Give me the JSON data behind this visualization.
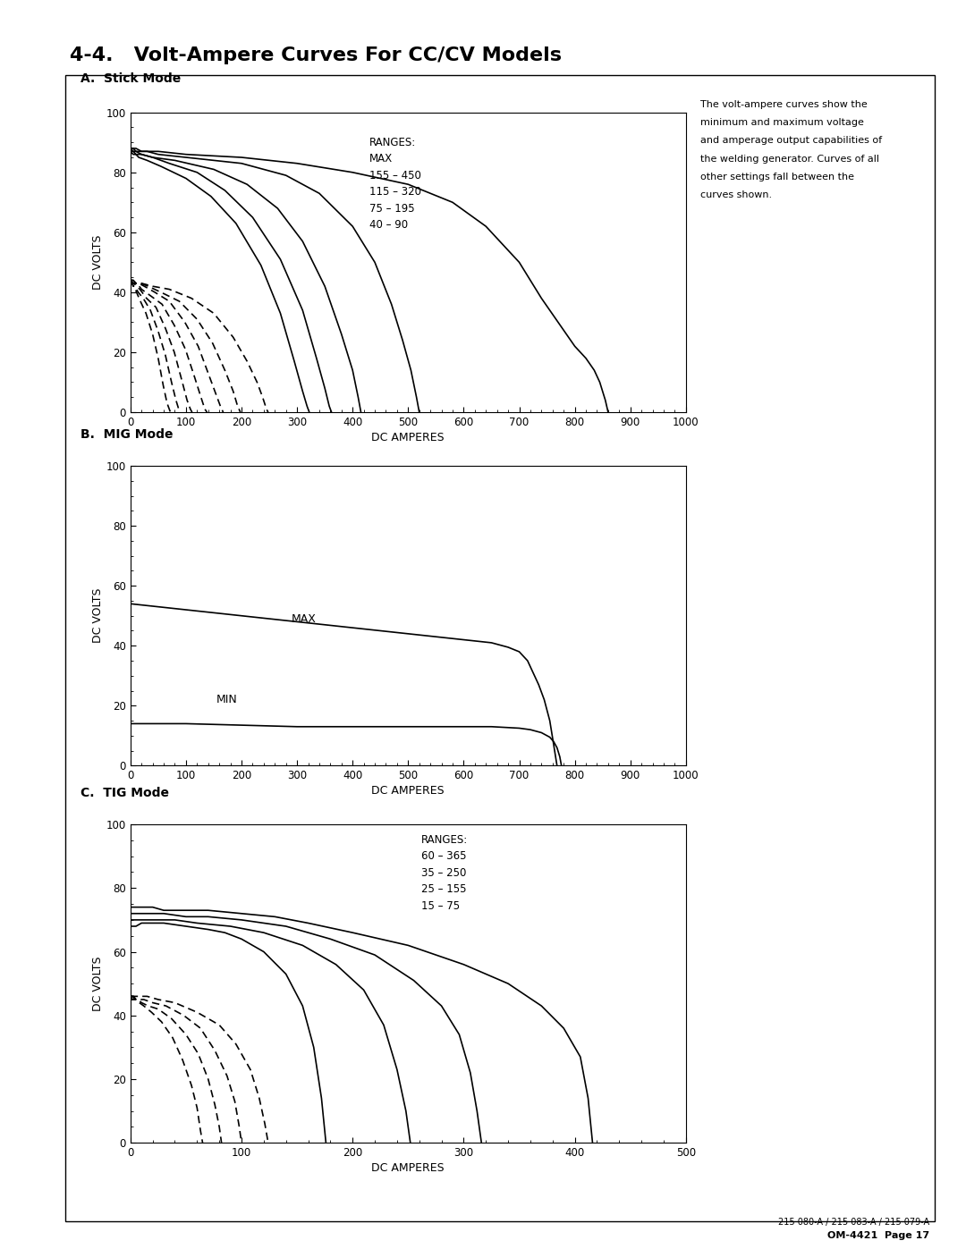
{
  "title": "4-4.   Volt-Ampere Curves For CC/CV Models",
  "page_bg": "#ffffff",
  "subtitle_a": "A.  Stick Mode",
  "subtitle_b": "B.  MIG Mode",
  "subtitle_c": "C.  TIG Mode",
  "side_note_lines": [
    "The volt-ampere curves show the",
    "minimum and maximum voltage",
    "and amperage output capabilities of",
    "the welding generator. Curves of all",
    "other settings fall between the",
    "curves shown."
  ],
  "bottom_note": "215 080-A / 215 083-A / 215 079-A",
  "page_note": "OM-4421  Page 17",
  "stick_ranges_text": "RANGES:\nMAX\n155 – 450\n115 – 320\n75 – 195\n40 – 90",
  "mig_max_label": "MAX",
  "mig_min_label": "MIN",
  "tig_ranges_text": "RANGES:\n60 – 365\n35 – 250\n25 – 155\n15 – 75",
  "xlabel": "DC AMPERES",
  "ylabel": "DC VOLTS"
}
